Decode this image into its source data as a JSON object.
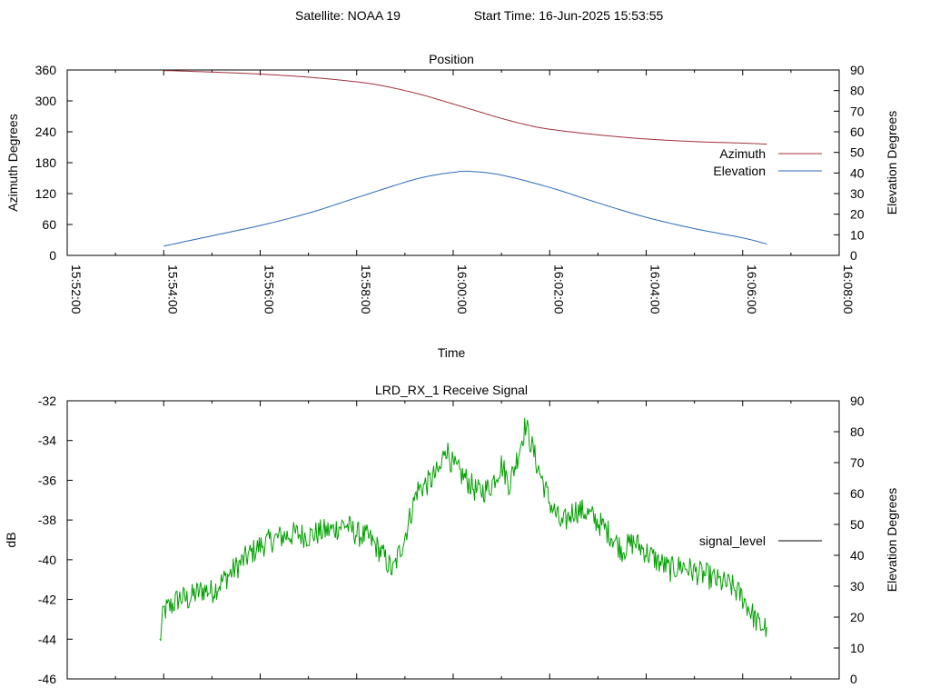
{
  "header": {
    "satellite_label": "Satellite: NOAA 19",
    "start_time_label": "Start Time: 16-Jun-2025 15:53:55"
  },
  "chart_data": [
    {
      "type": "line",
      "title": "Position",
      "xlabel": "Time",
      "ylabel": "Azimuth Degrees",
      "y2label": "Elevation Degrees",
      "x_ticks": [
        "15:52:00",
        "15:54:00",
        "15:56:00",
        "15:58:00",
        "16:00:00",
        "16:02:00",
        "16:04:00",
        "16:06:00",
        "16:08:00"
      ],
      "xlim": [
        "15:52:00",
        "16:08:00"
      ],
      "ylim": [
        0,
        360
      ],
      "y_ticks": [
        0,
        60,
        120,
        180,
        240,
        300,
        360
      ],
      "y2lim": [
        0,
        90
      ],
      "y2_ticks": [
        0,
        10,
        20,
        30,
        40,
        50,
        60,
        70,
        80,
        90
      ],
      "legend_position": "right",
      "grid": false,
      "series": [
        {
          "name": "Azimuth",
          "axis": "y",
          "color": "#a0303a",
          "x": [
            "15:54:00",
            "15:55:00",
            "15:56:00",
            "15:57:00",
            "15:58:00",
            "15:58:30",
            "15:59:00",
            "15:59:30",
            "16:00:00",
            "16:00:30",
            "16:01:00",
            "16:01:30",
            "16:02:00",
            "16:03:00",
            "16:04:00",
            "16:05:00",
            "16:06:00",
            "16:06:30"
          ],
          "values": [
            359,
            356,
            352,
            346,
            337,
            330,
            320,
            308,
            294,
            280,
            266,
            254,
            245,
            234,
            226,
            221,
            218,
            216
          ]
        },
        {
          "name": "Elevation",
          "axis": "y2",
          "color": "#2a6ab8",
          "x": [
            "15:54:00",
            "15:55:00",
            "15:56:00",
            "15:57:00",
            "15:58:00",
            "15:59:00",
            "15:59:30",
            "16:00:00",
            "16:00:20",
            "16:01:00",
            "16:02:00",
            "16:03:00",
            "16:04:00",
            "16:05:00",
            "16:06:00",
            "16:06:30"
          ],
          "values": [
            4.5,
            9.5,
            14.5,
            20.5,
            28,
            35.5,
            38.5,
            40.3,
            40.8,
            39,
            33,
            25.5,
            18.5,
            13,
            8.5,
            5.5
          ]
        }
      ]
    },
    {
      "type": "line",
      "title": "LRD_RX_1 Receive Signal",
      "xlabel": "",
      "ylabel": "dB",
      "y2label": "Elevation Degrees",
      "xlim": [
        "15:52:00",
        "16:08:00"
      ],
      "ylim": [
        -46,
        -32
      ],
      "y_ticks": [
        -46,
        -44,
        -42,
        -40,
        -38,
        -36,
        -34,
        -32
      ],
      "y2lim": [
        0,
        90
      ],
      "y2_ticks": [
        0,
        10,
        20,
        30,
        40,
        50,
        60,
        70,
        80,
        90
      ],
      "legend_position": "right",
      "grid": false,
      "series": [
        {
          "name": "signal_level",
          "color": "#00a000",
          "legend_color": "#000000",
          "x": [
            "15:53:55",
            "15:54:00",
            "15:54:10",
            "15:54:20",
            "15:54:30",
            "15:54:40",
            "15:54:50",
            "15:55:00",
            "15:55:15",
            "15:55:30",
            "15:55:45",
            "15:56:00",
            "15:56:15",
            "15:56:30",
            "15:56:45",
            "15:57:00",
            "15:57:15",
            "15:57:30",
            "15:57:45",
            "15:58:00",
            "15:58:15",
            "15:58:30",
            "15:58:45",
            "15:59:00",
            "15:59:15",
            "15:59:30",
            "15:59:45",
            "15:59:50",
            "16:00:00",
            "16:00:15",
            "16:00:30",
            "16:00:45",
            "16:01:00",
            "16:01:10",
            "16:01:20",
            "16:01:30",
            "16:01:45",
            "16:02:00",
            "16:02:15",
            "16:02:30",
            "16:02:45",
            "16:03:00",
            "16:03:15",
            "16:03:30",
            "16:03:45",
            "16:04:00",
            "16:04:15",
            "16:04:30",
            "16:04:45",
            "16:05:00",
            "16:05:15",
            "16:05:30",
            "16:05:45",
            "16:06:00",
            "16:06:10",
            "16:06:20",
            "16:06:30"
          ],
          "values": [
            -44.2,
            -42.6,
            -42.3,
            -41.9,
            -42.0,
            -41.7,
            -41.5,
            -41.6,
            -41.0,
            -40.4,
            -39.8,
            -39.3,
            -39.0,
            -38.8,
            -38.7,
            -38.8,
            -38.6,
            -38.5,
            -38.2,
            -38.7,
            -38.9,
            -39.6,
            -40.6,
            -38.8,
            -36.5,
            -36.1,
            -35.4,
            -34.2,
            -35.3,
            -35.9,
            -36.6,
            -36.4,
            -35.2,
            -36.2,
            -34.8,
            -33.2,
            -35.3,
            -37.1,
            -38.3,
            -37.5,
            -37.6,
            -38.1,
            -38.7,
            -39.5,
            -39.1,
            -39.6,
            -40.1,
            -40.5,
            -40.3,
            -40.6,
            -40.8,
            -41.1,
            -41.3,
            -41.9,
            -42.6,
            -43.3,
            -43.4
          ]
        }
      ]
    }
  ]
}
